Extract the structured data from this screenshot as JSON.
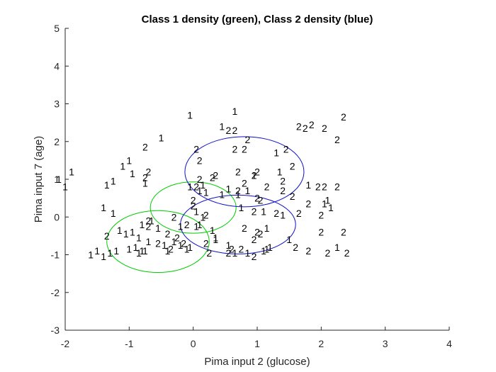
{
  "chart_data": {
    "type": "scatter",
    "title": "Class 1 density (green), Class 2 density (blue)",
    "xlabel": "Pima input 2 (glucose)",
    "ylabel": "Pima input 7 (age)",
    "xlim": [
      -2,
      4
    ],
    "ylim": [
      -3,
      5
    ],
    "xticks": [
      -2,
      -1,
      0,
      1,
      2,
      3,
      4
    ],
    "yticks": [
      -3,
      -2,
      -1,
      0,
      1,
      2,
      3,
      4,
      5
    ],
    "xtick_labels": [
      "-2",
      "-1",
      "0",
      "1",
      "2",
      "3",
      "4"
    ],
    "ytick_labels": [
      "-3",
      "-2",
      "-1",
      "0",
      "1",
      "2",
      "3",
      "4",
      "5"
    ],
    "grid": false,
    "colors": {
      "class1_density": "#00cc00",
      "class2_density": "#1010c8",
      "axes": "#262626"
    },
    "points": [
      {
        "label": "1",
        "x": -1.9,
        "y": 1.2
      },
      {
        "label": "1",
        "x": -2.0,
        "y": 0.8
      },
      {
        "label": "1",
        "x": -2.1,
        "y": 1.0
      },
      {
        "label": "1",
        "x": -0.5,
        "y": 2.1
      },
      {
        "label": "2",
        "x": -0.75,
        "y": 1.85
      },
      {
        "label": "1",
        "x": -1.0,
        "y": 1.5
      },
      {
        "label": "1",
        "x": -1.1,
        "y": 1.35
      },
      {
        "label": "2",
        "x": -0.7,
        "y": 1.2
      },
      {
        "label": "1",
        "x": -0.95,
        "y": 1.15
      },
      {
        "label": "2",
        "x": -0.75,
        "y": 1.05
      },
      {
        "label": "1",
        "x": -1.25,
        "y": 0.95
      },
      {
        "label": "1",
        "x": -1.35,
        "y": 0.85
      },
      {
        "label": "1",
        "x": -0.75,
        "y": 0.9
      },
      {
        "label": "1",
        "x": -1.4,
        "y": 0.25
      },
      {
        "label": "1",
        "x": -1.25,
        "y": 0.1
      },
      {
        "label": "2",
        "x": -0.7,
        "y": -0.1
      },
      {
        "label": "2",
        "x": -1.35,
        "y": -0.5
      },
      {
        "label": "1",
        "x": -1.15,
        "y": -0.35
      },
      {
        "label": "1",
        "x": -1.6,
        "y": -1.0
      },
      {
        "label": "1",
        "x": -1.5,
        "y": -0.9
      },
      {
        "label": "1",
        "x": -1.4,
        "y": -1.05
      },
      {
        "label": "1",
        "x": -1.3,
        "y": -0.95
      },
      {
        "label": "1",
        "x": -1.2,
        "y": -0.9
      },
      {
        "label": "1",
        "x": -1.0,
        "y": -0.85
      },
      {
        "label": "1",
        "x": -0.9,
        "y": -0.8
      },
      {
        "label": "1",
        "x": -0.85,
        "y": -0.95
      },
      {
        "label": "1",
        "x": -0.8,
        "y": -0.9
      },
      {
        "label": "1",
        "x": -0.75,
        "y": -0.9
      },
      {
        "label": "1",
        "x": -1.05,
        "y": -0.45
      },
      {
        "label": "1",
        "x": -0.95,
        "y": -0.4
      },
      {
        "label": "1",
        "x": -0.85,
        "y": -0.55
      },
      {
        "label": "1",
        "x": -0.7,
        "y": -0.65
      },
      {
        "label": "2",
        "x": -0.55,
        "y": -0.7
      },
      {
        "label": "1",
        "x": -0.45,
        "y": -0.75
      },
      {
        "label": "1",
        "x": -0.4,
        "y": -0.9
      },
      {
        "label": "2",
        "x": -0.35,
        "y": -0.85
      },
      {
        "label": "1",
        "x": -0.3,
        "y": -0.65
      },
      {
        "label": "1",
        "x": -0.2,
        "y": -0.75
      },
      {
        "label": "1",
        "x": -0.1,
        "y": -0.85
      },
      {
        "label": "2",
        "x": -0.15,
        "y": -0.7
      },
      {
        "label": "1",
        "x": -0.05,
        "y": -0.8
      },
      {
        "label": "2",
        "x": 0.2,
        "y": -0.7
      },
      {
        "label": "1",
        "x": 0.3,
        "y": -0.35
      },
      {
        "label": "1",
        "x": 0.35,
        "y": -0.55
      },
      {
        "label": "1",
        "x": 0.35,
        "y": -0.6
      },
      {
        "label": "2",
        "x": 0.25,
        "y": -0.95
      },
      {
        "label": "1",
        "x": -0.8,
        "y": -0.2
      },
      {
        "label": "2",
        "x": -0.7,
        "y": -0.25
      },
      {
        "label": "1",
        "x": -0.65,
        "y": -0.1
      },
      {
        "label": "1",
        "x": -0.55,
        "y": -0.3
      },
      {
        "label": "2",
        "x": -0.4,
        "y": -0.45
      },
      {
        "label": "2",
        "x": -0.25,
        "y": -0.55
      },
      {
        "label": "2",
        "x": -0.3,
        "y": 0.0
      },
      {
        "label": "1",
        "x": -0.2,
        "y": -0.25
      },
      {
        "label": "2",
        "x": -0.1,
        "y": -0.2
      },
      {
        "label": "1",
        "x": 0.05,
        "y": -0.25
      },
      {
        "label": "1",
        "x": 0.1,
        "y": -0.2
      },
      {
        "label": "1",
        "x": 0.15,
        "y": 0.0
      },
      {
        "label": "2",
        "x": 0.2,
        "y": 0.05
      },
      {
        "label": "1",
        "x": 0.05,
        "y": 0.15
      },
      {
        "label": "2",
        "x": 0.0,
        "y": 0.45
      },
      {
        "label": "2",
        "x": 0.0,
        "y": 0.3
      },
      {
        "label": "1",
        "x": 0.1,
        "y": 0.7
      },
      {
        "label": "1",
        "x": 0.2,
        "y": 0.65
      },
      {
        "label": "1",
        "x": -0.05,
        "y": 0.8
      },
      {
        "label": "2",
        "x": 0.05,
        "y": 0.8
      },
      {
        "label": "1",
        "x": 0.15,
        "y": 0.85
      },
      {
        "label": "2",
        "x": 0.3,
        "y": 1.05
      },
      {
        "label": "2",
        "x": 0.1,
        "y": 1.0
      },
      {
        "label": "1",
        "x": -0.05,
        "y": 2.7
      },
      {
        "label": "1",
        "x": 0.65,
        "y": 2.8
      },
      {
        "label": "1",
        "x": 0.45,
        "y": 2.4
      },
      {
        "label": "2",
        "x": 0.55,
        "y": 2.3
      },
      {
        "label": "2",
        "x": 0.65,
        "y": 2.3
      },
      {
        "label": "2",
        "x": 0.05,
        "y": 1.8
      },
      {
        "label": "2",
        "x": 0.1,
        "y": 1.5
      },
      {
        "label": "2",
        "x": 0.65,
        "y": 1.8
      },
      {
        "label": "2",
        "x": 0.8,
        "y": 1.8
      },
      {
        "label": "2",
        "x": 0.85,
        "y": 2.05
      },
      {
        "label": "1",
        "x": 1.3,
        "y": 1.7
      },
      {
        "label": "2",
        "x": 1.45,
        "y": 1.8
      },
      {
        "label": "2",
        "x": 0.7,
        "y": 1.2
      },
      {
        "label": "1",
        "x": 0.95,
        "y": 1.1
      },
      {
        "label": "2",
        "x": 1.0,
        "y": 1.2
      },
      {
        "label": "2",
        "x": 0.35,
        "y": 1.1
      },
      {
        "label": "2",
        "x": 0.95,
        "y": 1.1
      },
      {
        "label": "2",
        "x": 1.4,
        "y": 0.95
      },
      {
        "label": "1",
        "x": 0.55,
        "y": 0.75
      },
      {
        "label": "2",
        "x": 0.7,
        "y": 0.7
      },
      {
        "label": "1",
        "x": 0.85,
        "y": 0.7
      },
      {
        "label": "2",
        "x": 0.8,
        "y": 0.9
      },
      {
        "label": "2",
        "x": 1.15,
        "y": 0.8
      },
      {
        "label": "2",
        "x": 1.4,
        "y": 0.7
      },
      {
        "label": "1",
        "x": 0.45,
        "y": 0.6
      },
      {
        "label": "1",
        "x": 0.7,
        "y": 0.6
      },
      {
        "label": "2",
        "x": 1.0,
        "y": 0.5
      },
      {
        "label": "2",
        "x": 1.05,
        "y": 0.45
      },
      {
        "label": "1",
        "x": 0.75,
        "y": 0.25
      },
      {
        "label": "2",
        "x": 0.95,
        "y": 0.15
      },
      {
        "label": "1",
        "x": 1.1,
        "y": 0.15
      },
      {
        "label": "2",
        "x": 1.3,
        "y": 0.1
      },
      {
        "label": "1",
        "x": 1.4,
        "y": 0.05
      },
      {
        "label": "2",
        "x": 0.8,
        "y": -0.3
      },
      {
        "label": "2",
        "x": 1.0,
        "y": -0.4
      },
      {
        "label": "2",
        "x": 1.05,
        "y": -0.45
      },
      {
        "label": "1",
        "x": 1.15,
        "y": -0.3
      },
      {
        "label": "2",
        "x": 0.95,
        "y": -0.6
      },
      {
        "label": "1",
        "x": 0.55,
        "y": -0.75
      },
      {
        "label": "2",
        "x": 0.6,
        "y": -0.85
      },
      {
        "label": "2",
        "x": 0.55,
        "y": -0.95
      },
      {
        "label": "1",
        "x": 0.65,
        "y": -0.95
      },
      {
        "label": "2",
        "x": 0.75,
        "y": -0.85
      },
      {
        "label": "1",
        "x": 0.85,
        "y": -0.95
      },
      {
        "label": "2",
        "x": 0.95,
        "y": -1.05
      },
      {
        "label": "1",
        "x": 1.1,
        "y": -0.9
      },
      {
        "label": "1",
        "x": 1.15,
        "y": -0.85
      },
      {
        "label": "1",
        "x": 1.2,
        "y": -0.8
      },
      {
        "label": "1",
        "x": 1.5,
        "y": -0.6
      },
      {
        "label": "2",
        "x": 1.6,
        "y": -0.8
      },
      {
        "label": "2",
        "x": 1.8,
        "y": -0.9
      },
      {
        "label": "2",
        "x": 2.0,
        "y": -0.4
      },
      {
        "label": "2",
        "x": 2.1,
        "y": -0.95
      },
      {
        "label": "1",
        "x": 2.25,
        "y": -0.8
      },
      {
        "label": "2",
        "x": 2.4,
        "y": -0.95
      },
      {
        "label": "2",
        "x": 2.35,
        "y": -0.4
      },
      {
        "label": "2",
        "x": 1.65,
        "y": 0.1
      },
      {
        "label": "2",
        "x": 1.8,
        "y": 0.35
      },
      {
        "label": "1",
        "x": 2.05,
        "y": 0.35
      },
      {
        "label": "2",
        "x": 2.0,
        "y": 0.05
      },
      {
        "label": "1",
        "x": 2.15,
        "y": 0.25
      },
      {
        "label": "2",
        "x": 1.55,
        "y": 0.55
      },
      {
        "label": "1",
        "x": 1.8,
        "y": 0.85
      },
      {
        "label": "2",
        "x": 1.95,
        "y": 0.8
      },
      {
        "label": "2",
        "x": 2.05,
        "y": 0.8
      },
      {
        "label": "2",
        "x": 2.25,
        "y": 0.8
      },
      {
        "label": "1",
        "x": 2.1,
        "y": 0.45
      },
      {
        "label": "2",
        "x": 1.65,
        "y": 2.4
      },
      {
        "label": "2",
        "x": 1.85,
        "y": 2.45
      },
      {
        "label": "2",
        "x": 1.75,
        "y": 2.35
      },
      {
        "label": "2",
        "x": 2.05,
        "y": 2.35
      },
      {
        "label": "2",
        "x": 2.35,
        "y": 2.65
      },
      {
        "label": "2",
        "x": 2.25,
        "y": 2.05
      },
      {
        "label": "1",
        "x": 1.35,
        "y": 1.2
      },
      {
        "label": "2",
        "x": 1.55,
        "y": 1.35
      }
    ],
    "class1_ellipses": [
      {
        "cx": -0.55,
        "cy": -0.65,
        "rx": 0.8,
        "ry": 0.82
      },
      {
        "cx": 0.0,
        "cy": 0.25,
        "rx": 0.67,
        "ry": 0.68
      }
    ],
    "class2_ellipses": [
      {
        "cx": 0.8,
        "cy": 1.2,
        "rx": 0.93,
        "ry": 0.93
      },
      {
        "cx": 0.7,
        "cy": -0.2,
        "rx": 0.9,
        "ry": 0.78
      }
    ]
  }
}
